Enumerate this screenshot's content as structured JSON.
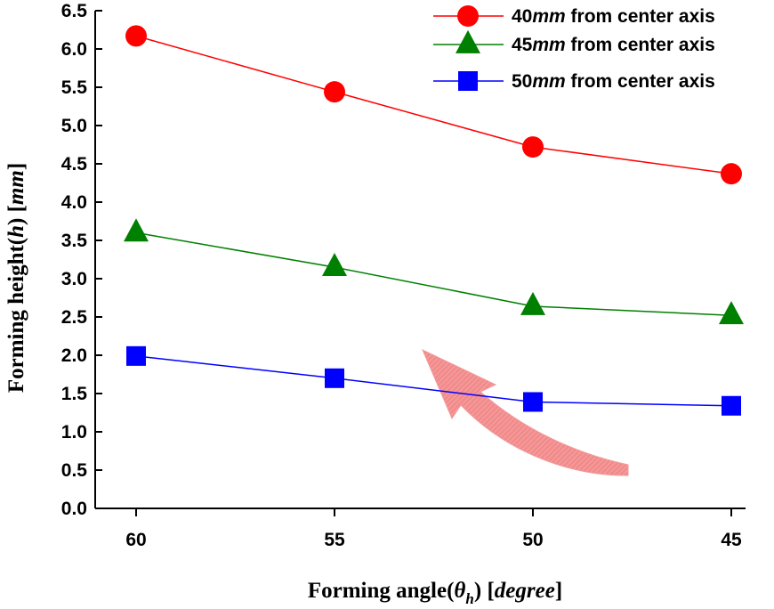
{
  "chart_data": {
    "type": "line",
    "title": "",
    "xlabel": {
      "text": "Forming angle(",
      "symbol": "θ",
      "subscript": "h",
      "close": ") ",
      "unit": "[degree]",
      "unit_open": "[",
      "unit_text": "degree",
      "unit_close": "]"
    },
    "ylabel": {
      "text": "Forming height(",
      "symbol": "h",
      "close": ") ",
      "unit_open": "[",
      "unit_text": "mm",
      "unit_close": "]"
    },
    "x": [
      60,
      55,
      50,
      45
    ],
    "x_tick_labels": [
      "60",
      "55",
      "50",
      "45"
    ],
    "y_tick_labels": [
      "0.0",
      "0.5",
      "1.0",
      "1.5",
      "2.0",
      "2.5",
      "3.0",
      "3.5",
      "4.0",
      "4.5",
      "5.0",
      "5.5",
      "6.0",
      "6.5"
    ],
    "ylim": [
      0,
      6.5
    ],
    "grid": false,
    "legend_position": "top-right",
    "series": [
      {
        "name": "40mm from center axis",
        "num": "40",
        "unit": "mm",
        "rest": " from center axis",
        "marker": "circle",
        "color": "#ff0000",
        "values": [
          6.17,
          5.44,
          4.72,
          4.37
        ]
      },
      {
        "name": "45mm from center axis",
        "num": "45",
        "unit": "mm",
        "rest": " from center axis",
        "marker": "triangle",
        "color": "#008000",
        "values": [
          3.6,
          3.15,
          2.64,
          2.52
        ]
      },
      {
        "name": "50mm from center axis",
        "num": "50",
        "unit": "mm",
        "rest": " from center axis",
        "marker": "square",
        "color": "#0000ff",
        "values": [
          1.99,
          1.7,
          1.39,
          1.34
        ]
      }
    ],
    "annotation": {
      "type": "curved-arrow",
      "color": "#f08080",
      "meaning": "trend-direction"
    }
  }
}
